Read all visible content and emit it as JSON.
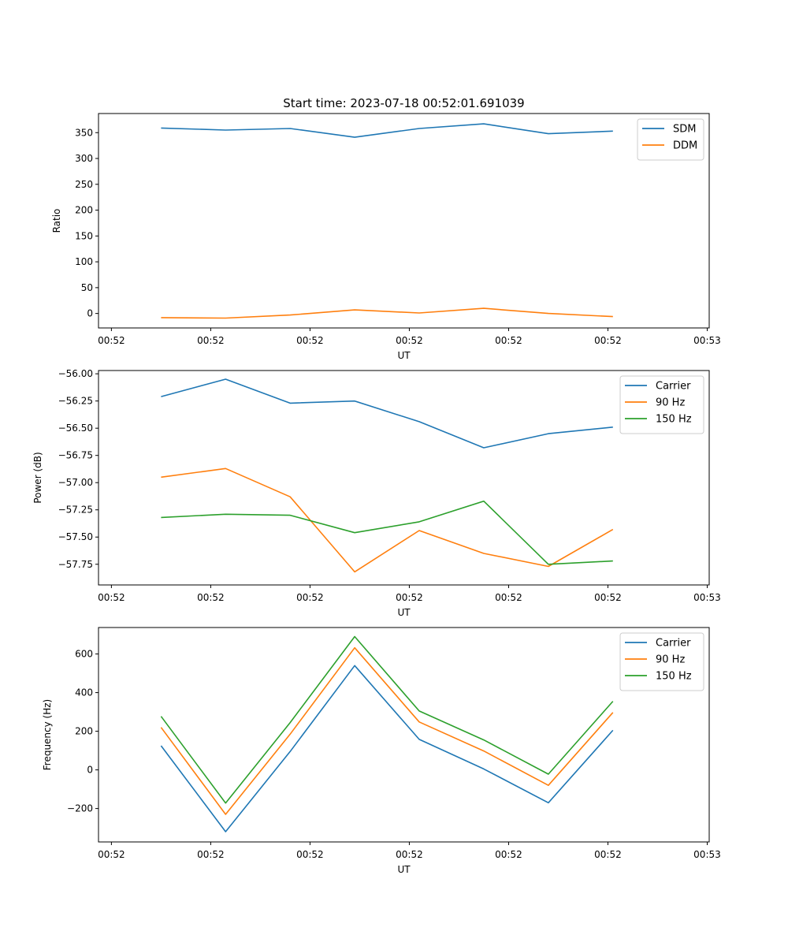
{
  "chart_data": [
    {
      "type": "line",
      "title": "Start time: 2023-07-18 00:52:01.691039",
      "xlabel": "UT",
      "ylabel": "Ratio",
      "x_tick_labels": [
        "00:52",
        "00:52",
        "00:52",
        "00:52",
        "00:52",
        "00:52",
        "00:53"
      ],
      "x_ticks": [
        0,
        1,
        2,
        3,
        4,
        5,
        6
      ],
      "xlim": [
        -0.13,
        6.02
      ],
      "ylim": [
        -28,
        387
      ],
      "y_ticks": [
        0,
        50,
        100,
        150,
        200,
        250,
        300,
        350
      ],
      "y_tick_labels": [
        "0",
        "50",
        "100",
        "150",
        "200",
        "250",
        "300",
        "350"
      ],
      "x": [
        0.5,
        1.15,
        1.8,
        2.45,
        3.1,
        3.75,
        4.4,
        5.05
      ],
      "legend": "top-right",
      "series": [
        {
          "name": "SDM",
          "color": "#1f77b4",
          "values": [
            359,
            355,
            358,
            341,
            358,
            367,
            348,
            353
          ]
        },
        {
          "name": "DDM",
          "color": "#ff7f0e",
          "values": [
            -8,
            -9,
            -3,
            7,
            1,
            10,
            0,
            -6
          ]
        }
      ]
    },
    {
      "type": "line",
      "title": "",
      "xlabel": "UT",
      "ylabel": "Power (dB)",
      "x_tick_labels": [
        "00:52",
        "00:52",
        "00:52",
        "00:52",
        "00:52",
        "00:52",
        "00:53"
      ],
      "x_ticks": [
        0,
        1,
        2,
        3,
        4,
        5,
        6
      ],
      "xlim": [
        -0.13,
        6.02
      ],
      "ylim": [
        -57.94,
        -55.97
      ],
      "y_ticks": [
        -57.75,
        -57.5,
        -57.25,
        -57.0,
        -56.75,
        -56.5,
        -56.25,
        -56.0
      ],
      "y_tick_labels": [
        "−57.75",
        "−57.50",
        "−57.25",
        "−57.00",
        "−56.75",
        "−56.50",
        "−56.25",
        "−56.00"
      ],
      "x": [
        0.5,
        1.15,
        1.8,
        2.45,
        3.1,
        3.75,
        4.4,
        5.05
      ],
      "legend": "top-right",
      "series": [
        {
          "name": "Carrier",
          "color": "#1f77b4",
          "values": [
            -56.21,
            -56.05,
            -56.27,
            -56.25,
            -56.44,
            -56.68,
            -56.55,
            -56.49
          ]
        },
        {
          "name": "90 Hz",
          "color": "#ff7f0e",
          "values": [
            -56.95,
            -56.87,
            -57.13,
            -57.82,
            -57.44,
            -57.65,
            -57.77,
            -57.43
          ]
        },
        {
          "name": "150 Hz",
          "color": "#2ca02c",
          "values": [
            -57.32,
            -57.29,
            -57.3,
            -57.46,
            -57.36,
            -57.17,
            -57.75,
            -57.72
          ]
        }
      ]
    },
    {
      "type": "line",
      "title": "",
      "xlabel": "UT",
      "ylabel": "Frequency (Hz)",
      "x_tick_labels": [
        "00:52",
        "00:52",
        "00:52",
        "00:52",
        "00:52",
        "00:52",
        "00:53"
      ],
      "x_ticks": [
        0,
        1,
        2,
        3,
        4,
        5,
        6
      ],
      "xlim": [
        -0.13,
        6.02
      ],
      "ylim": [
        -373,
        737
      ],
      "y_ticks": [
        -200,
        0,
        200,
        400,
        600
      ],
      "y_tick_labels": [
        "−200",
        "0",
        "200",
        "400",
        "600"
      ],
      "x": [
        0.5,
        1.15,
        1.8,
        2.45,
        3.1,
        3.75,
        4.4,
        5.05
      ],
      "legend": "top-right",
      "series": [
        {
          "name": "Carrier",
          "color": "#1f77b4",
          "values": [
            125,
            -320,
            95,
            540,
            158,
            5,
            -170,
            205
          ]
        },
        {
          "name": "90 Hz",
          "color": "#ff7f0e",
          "values": [
            220,
            -230,
            185,
            632,
            248,
            98,
            -80,
            297
          ]
        },
        {
          "name": "150 Hz",
          "color": "#2ca02c",
          "values": [
            277,
            -172,
            245,
            690,
            305,
            155,
            -22,
            355
          ]
        }
      ]
    }
  ]
}
